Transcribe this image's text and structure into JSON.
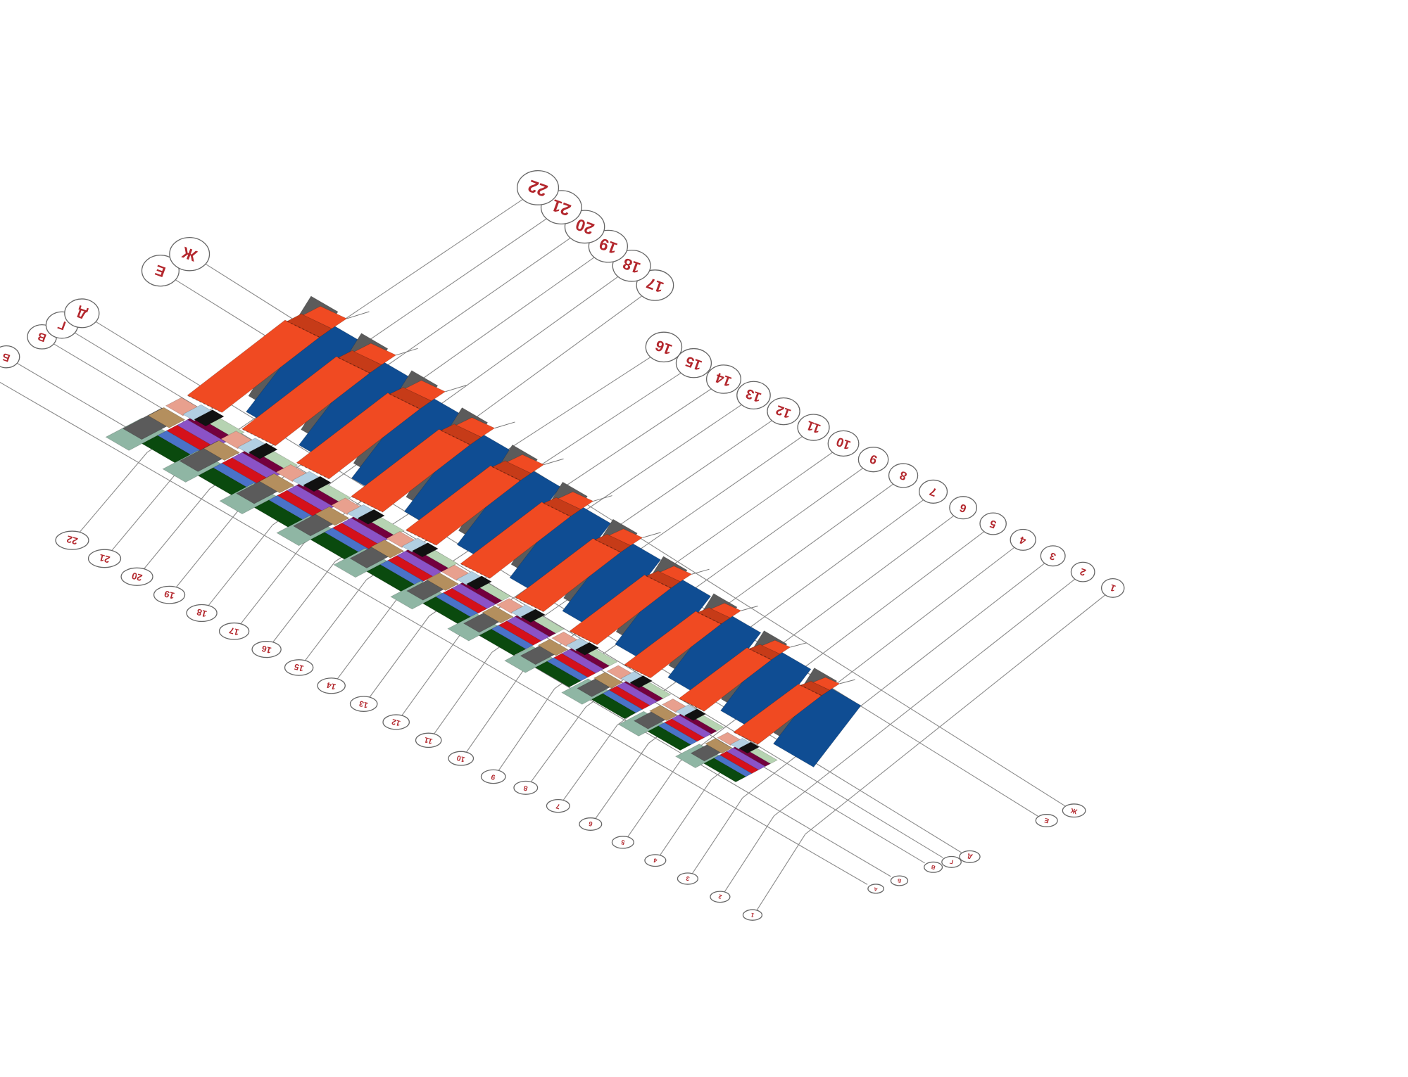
{
  "diagram": {
    "colors": {
      "roof_orange": "#f04a22",
      "roof_orange_dark": "#c63b18",
      "wall_blue": "#0f4d93",
      "wall_gray": "#5b5b5b",
      "salmon": "#e8a08e",
      "light_blue": "#b2cfe2",
      "black": "#111111",
      "tan": "#b48f5e",
      "sage": "#8fb6a4",
      "pale_green": "#b6d3b2",
      "maroon": "#74003e",
      "purple": "#8b52c6",
      "red": "#d5111a",
      "mid_blue": "#4a72c8",
      "dark_green": "#0a4a0e",
      "gridline": "#8a8a8a",
      "label_text": "#b3272d"
    },
    "letter_axes": [
      {
        "label": "А"
      },
      {
        "label": "Б"
      },
      {
        "label": "В"
      },
      {
        "label": "Г"
      },
      {
        "label": "Д"
      },
      {
        "label": "Е"
      },
      {
        "label": "Ж"
      }
    ],
    "number_axes": [
      {
        "label": "1"
      },
      {
        "label": "2"
      },
      {
        "label": "3"
      },
      {
        "label": "4"
      },
      {
        "label": "5"
      },
      {
        "label": "6"
      },
      {
        "label": "7"
      },
      {
        "label": "8"
      },
      {
        "label": "9"
      },
      {
        "label": "10"
      },
      {
        "label": "11"
      },
      {
        "label": "12"
      },
      {
        "label": "13"
      },
      {
        "label": "14"
      },
      {
        "label": "15"
      },
      {
        "label": "16"
      },
      {
        "label": "17"
      },
      {
        "label": "18"
      },
      {
        "label": "19"
      },
      {
        "label": "20"
      },
      {
        "label": "21"
      },
      {
        "label": "22"
      }
    ]
  }
}
